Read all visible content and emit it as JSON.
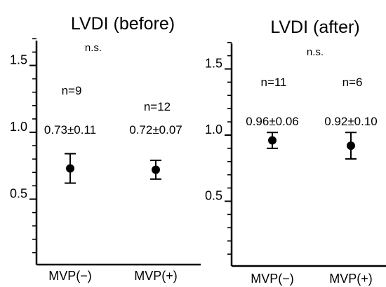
{
  "chart_data": [
    {
      "type": "scatter",
      "title": "LVDI (before)",
      "categories": [
        "MVP(−)",
        "MVP(+)"
      ],
      "yticks": [
        "1.5",
        "1.0",
        "0.5"
      ],
      "ylim": [
        0,
        1.75
      ],
      "grid": false,
      "series": [
        {
          "values": [
            0.73,
            0.72
          ],
          "error": [
            0.11,
            0.07
          ]
        }
      ],
      "n": [
        "n=9",
        "n=12"
      ],
      "value_labels": [
        "0.73±0.11",
        "0.72±0.07"
      ],
      "significance": "n.s."
    },
    {
      "type": "scatter",
      "title": "LVDI (after)",
      "categories": [
        "MVP(−)",
        "MVP(+)"
      ],
      "yticks": [
        "1.5",
        "1.0",
        "0.5"
      ],
      "ylim": [
        0,
        1.75
      ],
      "grid": false,
      "series": [
        {
          "values": [
            0.96,
            0.92
          ],
          "error": [
            0.06,
            0.1
          ]
        }
      ],
      "n": [
        "n=11",
        "n=6"
      ],
      "value_labels": [
        "0.96±0.06",
        "0.92±0.10"
      ],
      "significance": "n.s."
    }
  ]
}
